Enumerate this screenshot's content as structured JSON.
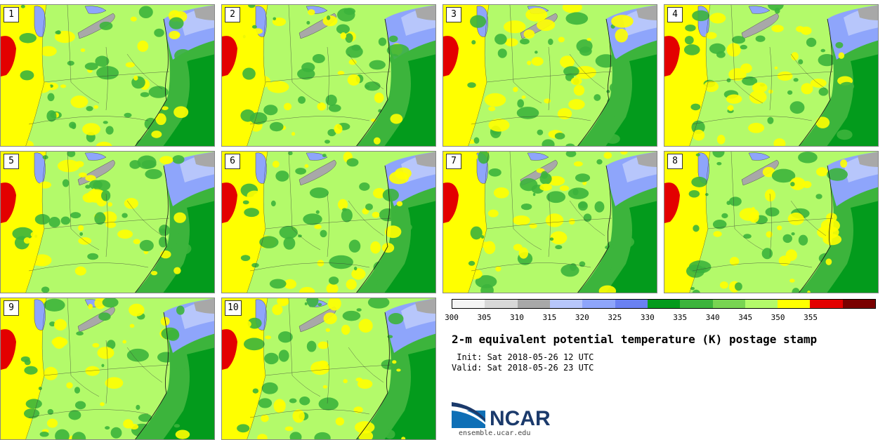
{
  "panels": [
    {
      "label": "1"
    },
    {
      "label": "2"
    },
    {
      "label": "3"
    },
    {
      "label": "4"
    },
    {
      "label": "5"
    },
    {
      "label": "6"
    },
    {
      "label": "7"
    },
    {
      "label": "8"
    },
    {
      "label": "9"
    },
    {
      "label": "10"
    }
  ],
  "colorbar": {
    "colors": [
      "#f4f4f4",
      "#d8d8d8",
      "#a8a8a8",
      "#b7c6fb",
      "#8ea5fb",
      "#6a81f2",
      "#039b1c",
      "#3cb43c",
      "#78d452",
      "#b3fa6a",
      "#ffff00",
      "#e30000",
      "#7a0000"
    ],
    "tick_labels": [
      "300",
      "305",
      "310",
      "315",
      "320",
      "325",
      "330",
      "335",
      "340",
      "345",
      "350",
      "355"
    ]
  },
  "title": "2-m equivalent potential temperature (K) postage stamp",
  "init": " Init: Sat 2018-05-26 12 UTC",
  "valid": "Valid: Sat 2018-05-26 23 UTC",
  "logo_text": "NCAR",
  "url": "ensemble.ucar.edu"
}
